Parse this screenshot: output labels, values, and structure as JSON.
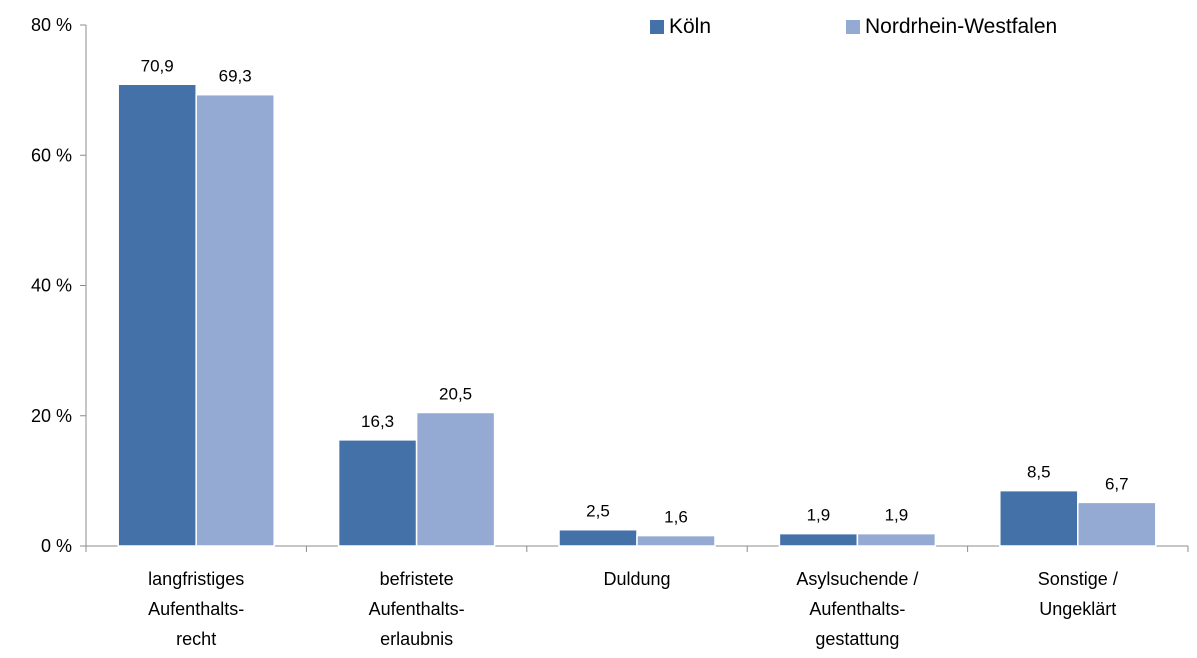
{
  "chart_data": {
    "type": "bar",
    "categories": [
      [
        "langfristiges",
        "Aufenthalts-",
        "recht"
      ],
      [
        "befristete",
        "Aufenthalts-",
        "erlaubnis"
      ],
      [
        "Duldung"
      ],
      [
        "Asylsuchende /",
        "Aufenthalts-",
        "gestattung"
      ],
      [
        "Sonstige /",
        "Ungeklärt"
      ]
    ],
    "series": [
      {
        "name": "Köln",
        "color": "#4472a8",
        "values": [
          70.9,
          16.3,
          2.5,
          1.9,
          8.5
        ],
        "labels": [
          "70,9",
          "16,3",
          "2,5",
          "1,9",
          "8,5"
        ]
      },
      {
        "name": "Nordrhein-Westfalen",
        "color": "#95aad3",
        "values": [
          69.3,
          20.5,
          1.6,
          1.9,
          6.7
        ],
        "labels": [
          "69,3",
          "20,5",
          "1,6",
          "1,9",
          "6,7"
        ]
      }
    ],
    "yticks": [
      0,
      20,
      40,
      60,
      80
    ],
    "ytick_labels": [
      "0 %",
      "20 %",
      "40 %",
      "60 %",
      "80 %"
    ],
    "ylim": [
      0,
      80
    ],
    "legend_position": "top-right",
    "grid": false
  }
}
